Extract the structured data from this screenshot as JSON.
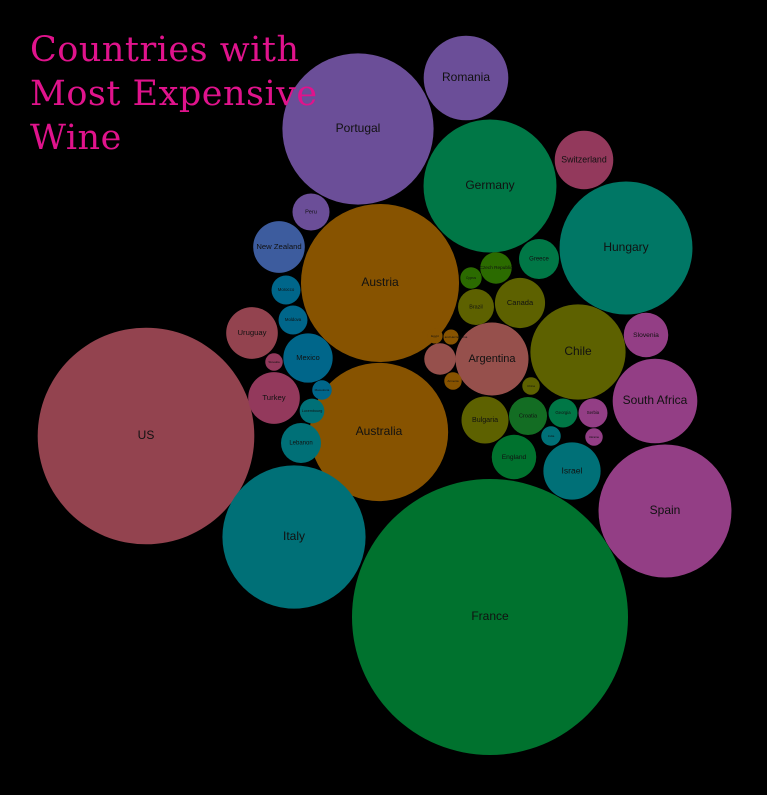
{
  "chart_data": {
    "type": "bubble",
    "title": "Countries with Most Expensive Wine",
    "bubbles": [
      {
        "label": "France",
        "color": "#00722e",
        "value": 1000
      },
      {
        "label": "US",
        "color": "#93434f",
        "value": 616
      },
      {
        "label": "Austria",
        "color": "#875300",
        "value": 328
      },
      {
        "label": "Portugal",
        "color": "#6b4e98",
        "value": 300
      },
      {
        "label": "Australia",
        "color": "#875300",
        "value": 251
      },
      {
        "label": "Italy",
        "color": "#007077",
        "value": 269
      },
      {
        "label": "Spain",
        "color": "#933e85",
        "value": 232
      },
      {
        "label": "Hungary",
        "color": "#007765",
        "value": 232
      },
      {
        "label": "Germany",
        "color": "#007746",
        "value": 232
      },
      {
        "label": "Chile",
        "color": "#5d6100",
        "value": 119
      },
      {
        "label": "Argentina",
        "color": "#96504c",
        "value": 70
      },
      {
        "label": "South Africa",
        "color": "#933e85",
        "value": 94
      },
      {
        "label": "Romania",
        "color": "#6b4e98",
        "value": 94
      },
      {
        "label": "Israel",
        "color": "#007077",
        "value": 43
      },
      {
        "label": "Switzerland",
        "color": "#93395c",
        "value": 45
      },
      {
        "label": "Slovenia",
        "color": "#933e85",
        "value": 26
      },
      {
        "label": "Turkey",
        "color": "#93395c",
        "value": 35
      },
      {
        "label": "Uruguay",
        "color": "#93434f",
        "value": 35
      },
      {
        "label": "New Zealand",
        "color": "#3d5c9e",
        "value": 35
      },
      {
        "label": "Mexico",
        "color": "#00668a",
        "value": 32
      },
      {
        "label": "Bulgaria",
        "color": "#5d6100",
        "value": 29
      },
      {
        "label": "Canada",
        "color": "#5d6100",
        "value": 33
      },
      {
        "label": "England",
        "color": "#00722e",
        "value": 26
      },
      {
        "label": "Croatia",
        "color": "#136d23",
        "value": 19
      },
      {
        "label": "Lebanon",
        "color": "#007077",
        "value": 21
      },
      {
        "label": "Greece",
        "color": "#007746",
        "value": 21
      },
      {
        "label": "Peru",
        "color": "#6b4e98",
        "value": 18
      },
      {
        "label": "Brazil",
        "color": "#5d6100",
        "value": 17
      },
      {
        "label": "Georgia",
        "color": "#007746",
        "value": 11
      },
      {
        "label": "Serbia",
        "color": "#933e85",
        "value": 11
      },
      {
        "label": "Czech Republic",
        "color": "#2b6b00",
        "value": 13
      },
      {
        "label": "Moldova",
        "color": "#00668a",
        "value": 11
      },
      {
        "label": "Morocco",
        "color": "#00668a",
        "value": 11
      },
      {
        "label": "",
        "color": "#96504c",
        "value": 13
      },
      {
        "label": "Cyprus",
        "color": "#2b6b00",
        "value": 6
      },
      {
        "label": "Luxembourg",
        "color": "#007077",
        "value": 8
      },
      {
        "label": "Macedonia",
        "color": "#00668a",
        "value": 5
      },
      {
        "label": "India",
        "color": "#007077",
        "value": 5
      },
      {
        "label": "Slovakia",
        "color": "#93395c",
        "value": 4
      },
      {
        "label": "China",
        "color": "#5d6100",
        "value": 4
      },
      {
        "label": "Armenia",
        "color": "#875300",
        "value": 4
      },
      {
        "label": "Ukraine",
        "color": "#933e85",
        "value": 4
      },
      {
        "label": "Bosnia and Herzegovina",
        "color": "#875300",
        "value": 3
      },
      {
        "label": "Egypt",
        "color": "#875300",
        "value": 3
      }
    ]
  }
}
